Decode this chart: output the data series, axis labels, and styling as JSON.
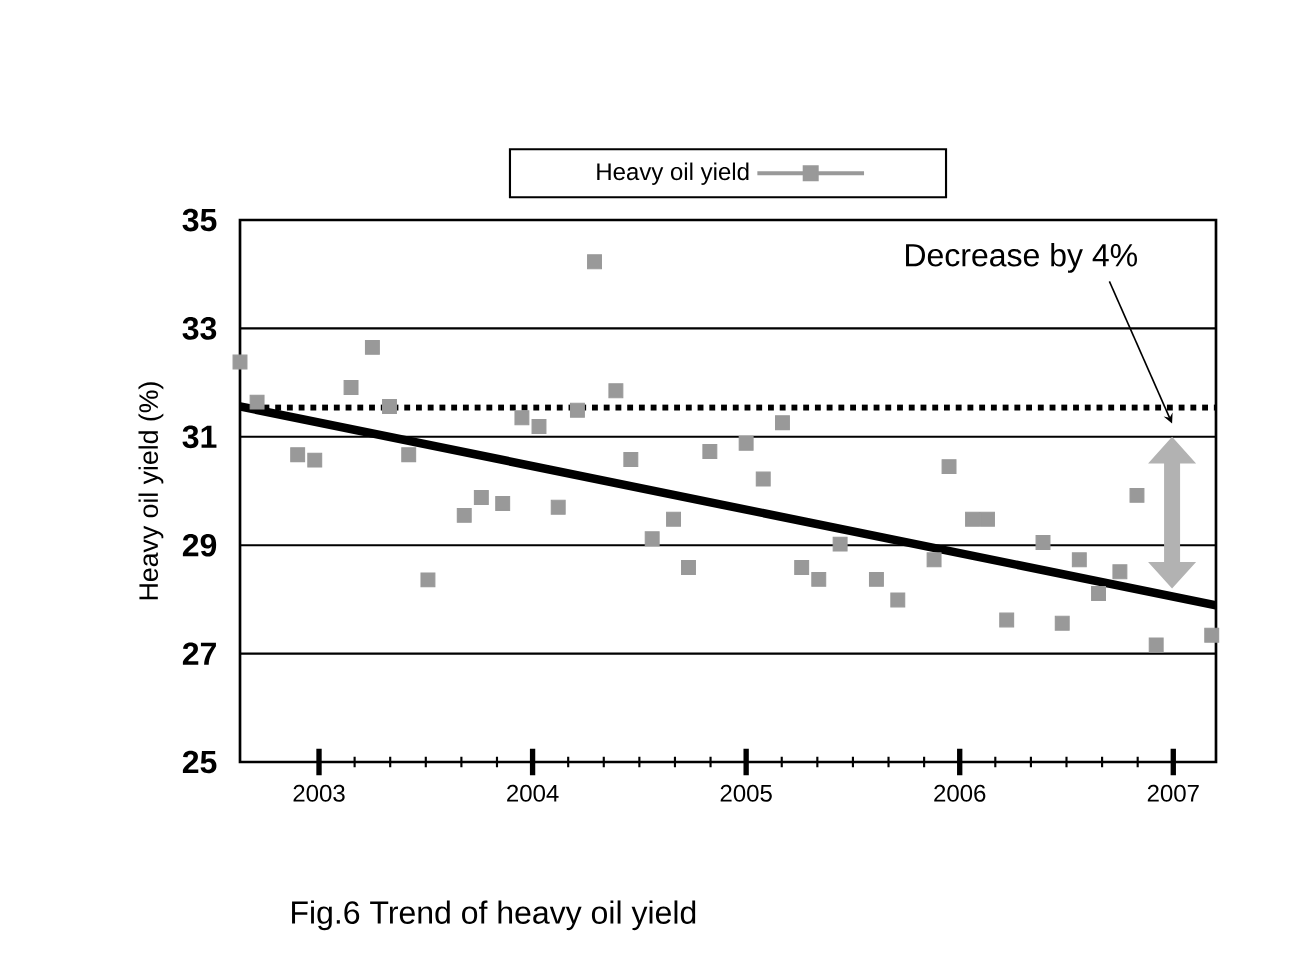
{
  "chart_data": {
    "type": "scatter",
    "ylabel": "Heavy oil yield (%)",
    "xlim": [
      2002.63,
      2007.2
    ],
    "ylim": [
      25,
      35
    ],
    "xticks": [
      2003,
      2004,
      2005,
      2006,
      2007
    ],
    "yticks": [
      25,
      27,
      29,
      31,
      33,
      35
    ],
    "grid": "y",
    "legend": "top",
    "marker": "square",
    "annotations": [
      "Decrease by 4%",
      "Fig.6 Trend of heavy oil yield"
    ],
    "ref_lines": [
      {
        "axis": "y",
        "value": 31.54,
        "line_style": "dotted",
        "color": "#000000"
      }
    ],
    "series": [
      {
        "name": "Heavy oil yield",
        "type": "scatter",
        "color": "#999999",
        "x": [
          2002.63,
          2002.71,
          2002.9,
          2002.98,
          2003.15,
          2003.25,
          2003.33,
          2003.42,
          2003.51,
          2003.68,
          2003.76,
          2003.86,
          2003.95,
          2004.03,
          2004.12,
          2004.21,
          2004.29,
          2004.39,
          2004.46,
          2004.56,
          2004.66,
          2004.73,
          2004.83,
          2005.0,
          2005.08,
          2005.17,
          2005.26,
          2005.34,
          2005.44,
          2005.61,
          2005.71,
          2005.88,
          2005.95,
          2006.06,
          2006.13,
          2006.22,
          2006.39,
          2006.48,
          2006.56,
          2006.65,
          2006.75,
          2006.83,
          2006.92,
          2007.18
        ],
        "values": [
          32.38,
          31.64,
          30.67,
          30.57,
          31.91,
          32.65,
          31.56,
          30.67,
          28.36,
          29.55,
          29.88,
          29.77,
          31.35,
          31.19,
          29.7,
          31.49,
          34.23,
          31.85,
          30.58,
          29.12,
          29.48,
          28.59,
          30.73,
          30.88,
          30.22,
          31.26,
          28.59,
          28.37,
          29.02,
          28.37,
          27.99,
          28.73,
          30.45,
          29.48,
          29.48,
          27.62,
          29.05,
          27.56,
          28.73,
          28.11,
          28.51,
          29.92,
          27.16,
          27.34
        ]
      },
      {
        "type": "line",
        "marker": "none",
        "color": "#000000",
        "x": [
          2002.63,
          2007.2
        ],
        "values": [
          31.56,
          27.89
        ]
      }
    ]
  }
}
